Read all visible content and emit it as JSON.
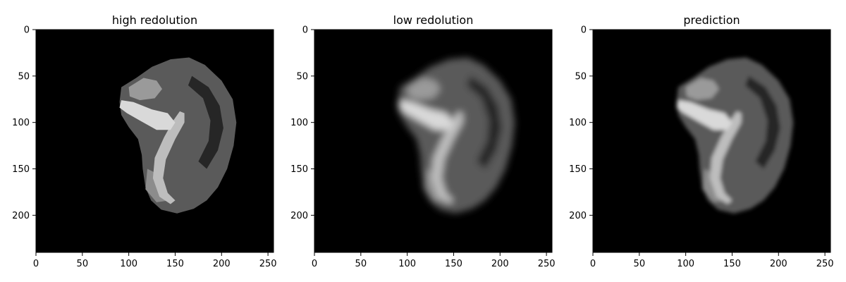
{
  "figure": {
    "background": "#ffffff",
    "image_background": "#000000",
    "axis_color": "#000000",
    "tissue_color": "#d9d9d9",
    "x_range": [
      0,
      256
    ],
    "y_range": [
      0,
      240
    ],
    "x_ticks": [
      "0",
      "50",
      "100",
      "150",
      "200",
      "250"
    ],
    "y_ticks": [
      "0",
      "50",
      "100",
      "150",
      "200"
    ],
    "panels": [
      {
        "title": "high redolution",
        "blur": 0
      },
      {
        "title": "low redolution",
        "blur": 5
      },
      {
        "title": "prediction",
        "blur": 3
      }
    ]
  }
}
